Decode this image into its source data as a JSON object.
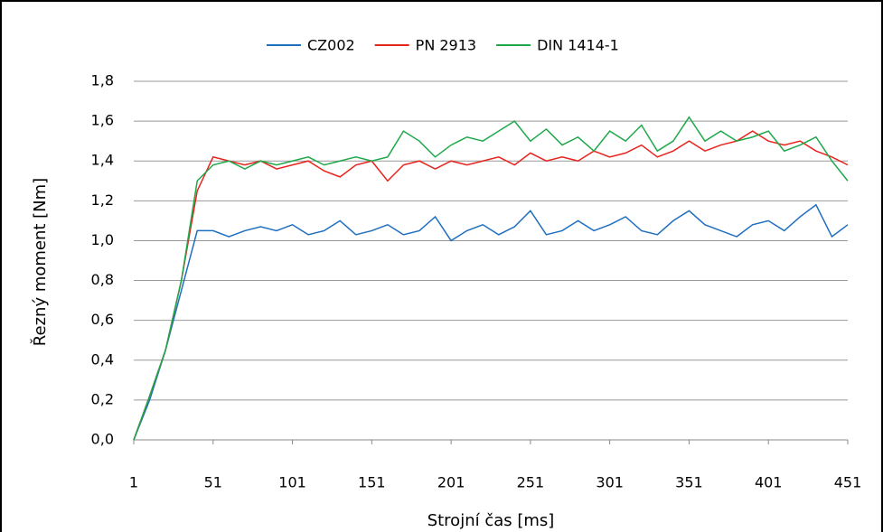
{
  "chart_data": {
    "type": "line",
    "x_label": "Strojní čas [ms]",
    "y_label": "Řezný moment [Nm]",
    "x": [
      1,
      11,
      21,
      31,
      41,
      51,
      61,
      71,
      81,
      91,
      101,
      111,
      121,
      131,
      141,
      151,
      161,
      171,
      181,
      191,
      201,
      211,
      221,
      231,
      241,
      251,
      261,
      271,
      281,
      291,
      301,
      311,
      321,
      331,
      341,
      351,
      361,
      371,
      381,
      391,
      401,
      411,
      421,
      431,
      441,
      451
    ],
    "series": [
      {
        "name": "CZ002",
        "color": "#1f6fc0",
        "values": [
          0,
          0.2,
          0.45,
          0.75,
          1.05,
          1.05,
          1.02,
          1.05,
          1.07,
          1.05,
          1.08,
          1.03,
          1.05,
          1.1,
          1.03,
          1.05,
          1.08,
          1.03,
          1.05,
          1.12,
          1.0,
          1.05,
          1.08,
          1.03,
          1.07,
          1.15,
          1.03,
          1.05,
          1.1,
          1.05,
          1.08,
          1.12,
          1.05,
          1.03,
          1.1,
          1.15,
          1.08,
          1.05,
          1.02,
          1.08,
          1.1,
          1.05,
          1.12,
          1.18,
          1.02,
          1.08
        ]
      },
      {
        "name": "PN 2913",
        "color": "#e8231d",
        "values": [
          0,
          0.22,
          0.45,
          0.8,
          1.25,
          1.42,
          1.4,
          1.38,
          1.4,
          1.36,
          1.38,
          1.4,
          1.35,
          1.32,
          1.38,
          1.4,
          1.3,
          1.38,
          1.4,
          1.36,
          1.4,
          1.38,
          1.4,
          1.42,
          1.38,
          1.44,
          1.4,
          1.42,
          1.4,
          1.45,
          1.42,
          1.44,
          1.48,
          1.42,
          1.45,
          1.5,
          1.45,
          1.48,
          1.5,
          1.55,
          1.5,
          1.48,
          1.5,
          1.45,
          1.42,
          1.38
        ]
      },
      {
        "name": "DIN 1414-1",
        "color": "#1fa84a",
        "values": [
          0,
          0.22,
          0.45,
          0.8,
          1.3,
          1.38,
          1.4,
          1.36,
          1.4,
          1.38,
          1.4,
          1.42,
          1.38,
          1.4,
          1.42,
          1.4,
          1.42,
          1.55,
          1.5,
          1.42,
          1.48,
          1.52,
          1.5,
          1.55,
          1.6,
          1.5,
          1.56,
          1.48,
          1.52,
          1.45,
          1.55,
          1.5,
          1.58,
          1.45,
          1.5,
          1.62,
          1.5,
          1.55,
          1.5,
          1.52,
          1.55,
          1.45,
          1.48,
          1.52,
          1.4,
          1.3
        ]
      }
    ],
    "xlim": [
      1,
      451
    ],
    "xticks": [
      1,
      51,
      101,
      151,
      201,
      251,
      301,
      351,
      401,
      451
    ],
    "ylim": [
      0,
      1.8
    ],
    "yticks": [
      {
        "value": 0,
        "label": "0,0"
      },
      {
        "value": 0.2,
        "label": "0,2"
      },
      {
        "value": 0.4,
        "label": "0,4"
      },
      {
        "value": 0.6,
        "label": "0,6"
      },
      {
        "value": 0.8,
        "label": "0,8"
      },
      {
        "value": 1.0,
        "label": "1,0"
      },
      {
        "value": 1.2,
        "label": "1,2"
      },
      {
        "value": 1.4,
        "label": "1,4"
      },
      {
        "value": 1.6,
        "label": "1,6"
      },
      {
        "value": 1.8,
        "label": "1,8"
      }
    ],
    "grid": true,
    "legend": "top"
  }
}
